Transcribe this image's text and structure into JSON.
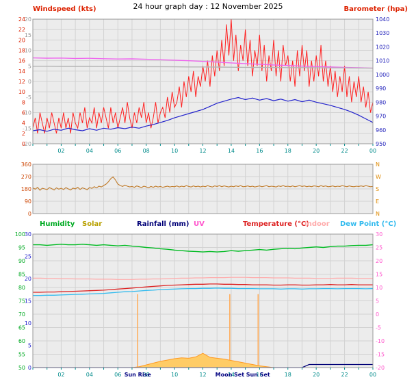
{
  "title": "24 hour graph day : 12 November 2025",
  "x_axis": {
    "tick_hours": [
      2,
      4,
      6,
      8,
      10,
      12,
      14,
      16,
      18,
      20,
      22,
      24
    ],
    "tick_labels": [
      "02",
      "04",
      "06",
      "08",
      "10",
      "12",
      "14",
      "16",
      "18",
      "20",
      "22",
      "00"
    ]
  },
  "colors": {
    "panel_bg": "#ececec",
    "grid": "#d2d2d2",
    "border": "#999999",
    "time_labels": "#008b8b",
    "marker_line": "#ffaa55",
    "marker_text": "#000080",
    "title_red": "#dd2200"
  },
  "chart_data": [
    {
      "name": "windspeed-barometer",
      "type": "line",
      "title_left": "Windspeed (kts)",
      "title_right": "Barometer (hpa)",
      "x_range": [
        0,
        24
      ],
      "axes": {
        "windspeed": {
          "range": [
            0,
            24
          ],
          "ticks": [
            24,
            22,
            20,
            18,
            16,
            14,
            12,
            10,
            8,
            6,
            4,
            2,
            0
          ],
          "color": "#dd2200",
          "side": "left"
        },
        "temperature_scale": {
          "range": [
            -20,
            20
          ],
          "ticks": [
            20,
            15,
            10,
            5,
            0,
            -5,
            -10,
            -15,
            -20
          ],
          "color": "#999999",
          "side": "left-inner"
        },
        "barometer": {
          "range": [
            950,
            1040
          ],
          "ticks": [
            1040,
            1030,
            1020,
            1010,
            1000,
            990,
            980,
            970,
            960,
            950
          ],
          "color": "#2222bb",
          "side": "right"
        }
      },
      "series": [
        {
          "name": "windspeed-gust",
          "axis": "windspeed",
          "color": "#ff2020",
          "width": 1,
          "values": [
            3,
            5,
            2,
            6,
            4,
            2,
            5,
            3,
            6,
            4,
            2,
            5,
            3,
            6,
            3,
            5,
            2,
            6,
            4,
            3,
            6,
            4,
            7,
            3,
            5,
            4,
            7,
            3,
            6,
            4,
            7,
            5,
            3,
            7,
            4,
            6,
            3,
            5,
            7,
            4,
            8,
            5,
            3,
            6,
            4,
            7,
            5,
            8,
            4,
            6,
            3,
            5,
            8,
            4,
            6,
            7,
            5,
            9,
            6,
            10,
            7,
            8,
            11,
            7,
            12,
            9,
            13,
            10,
            14,
            9,
            13,
            11,
            15,
            12,
            16,
            11,
            17,
            13,
            18,
            14,
            20,
            15,
            23,
            17,
            24,
            16,
            21,
            14,
            19,
            16,
            22,
            15,
            20,
            13,
            18,
            15,
            21,
            14,
            19,
            12,
            17,
            14,
            20,
            13,
            18,
            12,
            19,
            15,
            17,
            12,
            16,
            11,
            18,
            13,
            19,
            14,
            18,
            11,
            16,
            12,
            17,
            13,
            19,
            12,
            16,
            11,
            15,
            10,
            14,
            9,
            13,
            10,
            15,
            9,
            13,
            8,
            12,
            9,
            13,
            8,
            11,
            7,
            10,
            6,
            8
          ]
        },
        {
          "name": "windspeed-average",
          "axis": "windspeed",
          "color": "#2222cc",
          "width": 1.2,
          "values": [
            2.5,
            2.7,
            2.4,
            2.8,
            2.6,
            3.0,
            2.7,
            2.5,
            2.9,
            2.6,
            3.0,
            2.8,
            3.1,
            2.9,
            3.2,
            3.0,
            3.4,
            3.7,
            4.1,
            4.5,
            5.0,
            5.4,
            5.8,
            6.2,
            6.6,
            7.2,
            7.8,
            8.2,
            8.6,
            8.9,
            8.5,
            8.8,
            8.4,
            8.7,
            8.3,
            8.6,
            8.2,
            8.5,
            8.1,
            8.4,
            8.0,
            7.7,
            7.4,
            7.0,
            6.6,
            6.1,
            5.5,
            4.8,
            4.1
          ]
        },
        {
          "name": "barometer",
          "axis": "barometer",
          "color": "#ee66ee",
          "width": 1.4,
          "values": [
            1012.0,
            1011.8,
            1011.9,
            1011.6,
            1011.7,
            1011.4,
            1011.2,
            1011.3,
            1011.0,
            1010.7,
            1010.4,
            1010.0,
            1009.5,
            1009.0,
            1008.4,
            1007.9,
            1007.4,
            1006.9,
            1006.5,
            1006.1,
            1005.8,
            1005.5,
            1005.2,
            1004.9,
            1004.6
          ]
        },
        {
          "name": "pressure-trend",
          "axis": "barometer",
          "color": "#b5b5b5",
          "width": 1.4,
          "values": [
            1006.0,
            1006.0,
            1005.9,
            1005.9,
            1005.9,
            1005.8,
            1005.8,
            1005.8,
            1005.7,
            1005.7,
            1005.6,
            1005.5,
            1005.5,
            1005.4,
            1005.3,
            1005.2,
            1005.2,
            1005.1,
            1005.0,
            1005.0,
            1004.9,
            1004.8,
            1004.8,
            1004.7,
            1004.6
          ]
        }
      ]
    },
    {
      "name": "wind-direction",
      "type": "line",
      "x_range": [
        0,
        24
      ],
      "axes": {
        "degrees": {
          "range": [
            0,
            360
          ],
          "ticks": [
            360,
            270,
            180,
            90,
            0
          ],
          "color": "#cc4400",
          "side": "left-inner"
        },
        "compass": {
          "range": [
            0,
            360
          ],
          "ticks": [
            360,
            270,
            180,
            90,
            0
          ],
          "labels": [
            "N",
            "W",
            "S",
            "E",
            "N"
          ],
          "color": "#dd8800",
          "side": "right"
        }
      },
      "series": [
        {
          "name": "wind-direction",
          "axis": "degrees",
          "color": "#c07b2a",
          "width": 1.1,
          "values": [
            188,
            178,
            192,
            170,
            185,
            180,
            175,
            190,
            182,
            172,
            188,
            178,
            185,
            175,
            190,
            180,
            172,
            186,
            180,
            192,
            176,
            188,
            182,
            174,
            190,
            184,
            196,
            188,
            200,
            194,
            205,
            215,
            232,
            255,
            268,
            245,
            215,
            205,
            198,
            208,
            200,
            195,
            198,
            192,
            202,
            196,
            190,
            200,
            195,
            188,
            198,
            192,
            200,
            194,
            198,
            192,
            196,
            200,
            194,
            198,
            196,
            202,
            194,
            200,
            196,
            204,
            198,
            194,
            202,
            196,
            200,
            194,
            200,
            196,
            204,
            198,
            194,
            202,
            198,
            204,
            196,
            202,
            198,
            194,
            200,
            196,
            202,
            198,
            204,
            196,
            198,
            202,
            196,
            200,
            194,
            198,
            202,
            196,
            200,
            204,
            196,
            200,
            198,
            194,
            202,
            198,
            204,
            198,
            200,
            196,
            202,
            196,
            200,
            204,
            198,
            202,
            196,
            200,
            196,
            202,
            200,
            196,
            204,
            198,
            202,
            196,
            198,
            202,
            196,
            200,
            198,
            204,
            200,
            196,
            202,
            198,
            196,
            200,
            198,
            202,
            198,
            204,
            200,
            196,
            198
          ]
        }
      ]
    },
    {
      "name": "temp-humidity-rain",
      "type": "line",
      "x_range": [
        0,
        24
      ],
      "legend": [
        {
          "label": "Humidity",
          "color": "#00aa22"
        },
        {
          "label": "Solar",
          "color": "#b8a000"
        },
        {
          "label": "Rainfall (mm)",
          "color": "#000077"
        },
        {
          "label": "UV",
          "color": "#ff55cc"
        },
        {
          "label": "Temperature (°C)",
          "color": "#dd2222"
        },
        {
          "label": "Indoor",
          "color": "#ffaaaa"
        },
        {
          "label": "Dew Point (°C)",
          "color": "#33bbee"
        }
      ],
      "axes": {
        "humidity": {
          "range": [
            50,
            100
          ],
          "ticks": [
            100,
            95,
            90,
            85,
            80,
            75,
            70,
            65,
            60,
            55,
            50
          ],
          "color": "#00aa22",
          "side": "left"
        },
        "rain": {
          "range": [
            0,
            30
          ],
          "ticks": [
            30,
            25,
            20,
            15,
            10,
            5,
            0
          ],
          "color": "#2222cc",
          "side": "left-inner"
        },
        "temp": {
          "range": [
            -20,
            30
          ],
          "ticks": [
            30,
            25,
            20,
            15,
            10,
            5,
            0,
            -5,
            -10,
            -15,
            -20
          ],
          "color": "#ff55cc",
          "side": "right"
        }
      },
      "series": [
        {
          "name": "solar",
          "axis": "rain",
          "color": "#ff9922",
          "fill": "#ffcc66",
          "area": true,
          "width": 1,
          "values": [
            0,
            0,
            0,
            0,
            0,
            0,
            0,
            0,
            0,
            0,
            0,
            0,
            0,
            0,
            0,
            0.2,
            0.6,
            1.0,
            1.4,
            1.7,
            2.0,
            2.2,
            2.1,
            2.4,
            3.2,
            2.3,
            2.1,
            1.9,
            1.6,
            1.3,
            1.0,
            0.7,
            0.4,
            0.2,
            0,
            0,
            0,
            0,
            0,
            0,
            0,
            0,
            0,
            0,
            0,
            0,
            0,
            0,
            0
          ]
        },
        {
          "name": "uv",
          "axis": "rain",
          "color": "#ff55cc",
          "width": 1.1,
          "values": [
            0,
            0,
            0,
            0,
            0,
            0,
            0,
            0,
            0,
            0,
            0,
            0,
            0,
            0,
            0,
            0,
            0,
            0,
            0,
            0,
            0,
            0,
            0,
            0,
            0,
            0,
            0,
            0,
            0,
            0,
            0,
            0,
            0,
            0,
            0,
            0,
            0,
            0,
            0,
            0,
            0,
            0,
            0,
            0,
            0,
            0,
            0,
            0,
            0
          ]
        },
        {
          "name": "rainfall",
          "axis": "rain",
          "color": "#000077",
          "width": 1.3,
          "values": [
            0,
            0,
            0,
            0,
            0,
            0,
            0,
            0,
            0,
            0,
            0,
            0,
            0,
            0,
            0,
            0,
            0,
            0,
            0,
            0,
            0,
            0,
            0,
            0,
            0,
            0,
            0,
            0,
            0,
            0,
            0,
            0,
            0,
            0,
            0,
            0,
            0,
            0,
            0,
            0.7,
            0.7,
            0.7,
            0.7,
            0.7,
            0.7,
            0.7,
            0.7,
            0.7,
            0.7
          ]
        },
        {
          "name": "indoor",
          "axis": "temp",
          "color": "#ffaaaa",
          "width": 1.2,
          "values": [
            13.5,
            13.5,
            13.4,
            13.4,
            13.3,
            13.3,
            13.2,
            13.2,
            13.2,
            13.1,
            13.1,
            13.1,
            13.0,
            13.0,
            13.0,
            13.1,
            13.1,
            13.2,
            13.2,
            13.3,
            13.4,
            13.5,
            13.5,
            13.6,
            13.6,
            13.7,
            13.7,
            13.7,
            13.8,
            13.8,
            13.8,
            13.7,
            13.7,
            13.7,
            13.6,
            13.6,
            13.6,
            13.5,
            13.5,
            13.5,
            13.4,
            13.4,
            13.4,
            13.5,
            13.5,
            13.5,
            13.4,
            13.4,
            13.4
          ]
        },
        {
          "name": "dew-point",
          "axis": "temp",
          "color": "#33bbee",
          "width": 1.3,
          "values": [
            7.0,
            7.0,
            7.1,
            7.1,
            7.2,
            7.3,
            7.4,
            7.5,
            7.6,
            7.7,
            7.8,
            8.0,
            8.2,
            8.4,
            8.5,
            8.7,
            8.9,
            9.0,
            9.2,
            9.3,
            9.4,
            9.5,
            9.6,
            9.6,
            9.7,
            9.7,
            9.8,
            9.7,
            9.7,
            9.6,
            9.6,
            9.6,
            9.5,
            9.5,
            9.5,
            9.4,
            9.5,
            9.5,
            9.4,
            9.5,
            9.5,
            9.6,
            9.6,
            9.5,
            9.6,
            9.6,
            9.6,
            9.5,
            9.6
          ]
        },
        {
          "name": "temperature",
          "axis": "temp",
          "color": "#dd2222",
          "width": 1.3,
          "values": [
            8.2,
            8.2,
            8.3,
            8.3,
            8.4,
            8.5,
            8.6,
            8.7,
            8.8,
            8.9,
            9.0,
            9.2,
            9.4,
            9.6,
            9.8,
            10.0,
            10.2,
            10.4,
            10.6,
            10.8,
            10.9,
            11.0,
            11.1,
            11.2,
            11.2,
            11.3,
            11.3,
            11.2,
            11.2,
            11.1,
            11.1,
            11.0,
            11.0,
            11.0,
            10.9,
            10.9,
            11.0,
            11.0,
            10.9,
            10.9,
            11.0,
            11.0,
            11.1,
            11.0,
            11.0,
            11.1,
            11.0,
            11.0,
            11.0
          ]
        },
        {
          "name": "humidity",
          "axis": "humidity",
          "color": "#00bb22",
          "width": 1.4,
          "values": [
            96.0,
            96.0,
            95.8,
            96.0,
            96.2,
            96.0,
            96.0,
            96.2,
            96.0,
            95.8,
            96.0,
            95.8,
            95.6,
            95.8,
            95.5,
            95.3,
            95.0,
            94.8,
            94.5,
            94.3,
            94.0,
            93.8,
            93.6,
            93.5,
            93.3,
            93.5,
            93.3,
            93.5,
            93.8,
            93.6,
            93.8,
            94.0,
            94.2,
            94.0,
            94.3,
            94.5,
            94.7,
            94.5,
            94.8,
            95.0,
            95.2,
            95.0,
            95.3,
            95.5,
            95.5,
            95.7,
            95.8,
            95.8,
            96.0
          ]
        }
      ],
      "markers": [
        {
          "label": "Sun Rise",
          "hour": 7.4
        },
        {
          "label": "Moon Set",
          "hour": 13.9
        },
        {
          "label": "Sun Set",
          "hour": 15.9
        }
      ]
    }
  ]
}
